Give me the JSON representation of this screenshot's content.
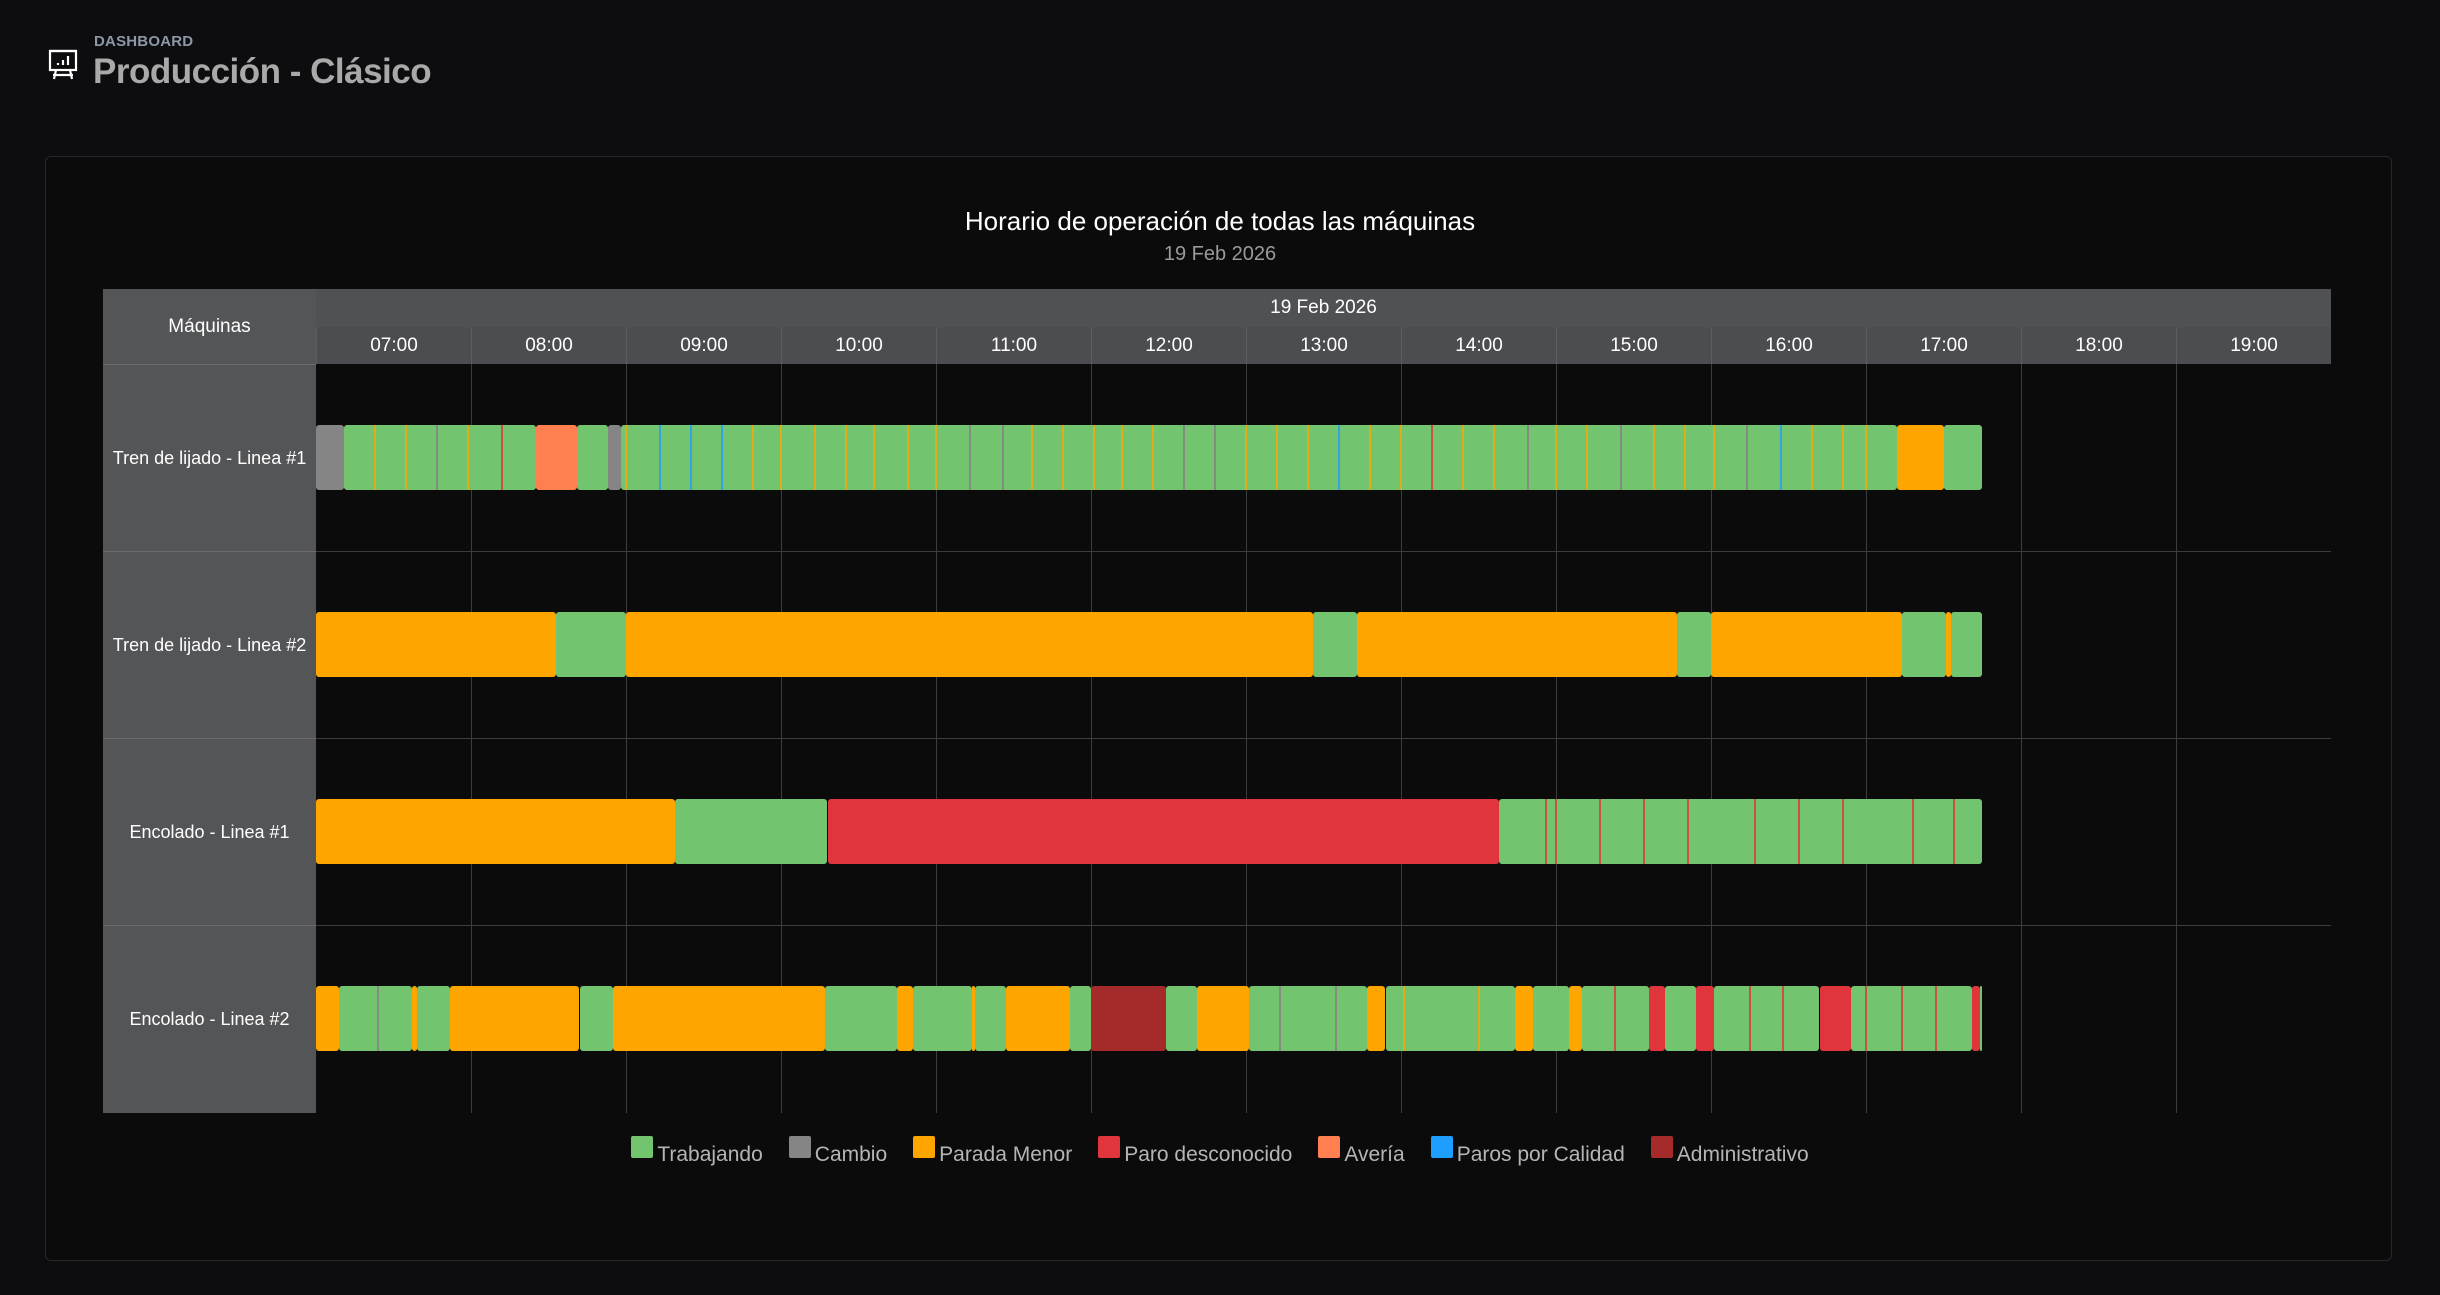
{
  "header": {
    "breadcrumb": "DASHBOARD",
    "title": "Producción - Clásico",
    "icon": "presentation-chart-icon"
  },
  "chart_data": {
    "type": "bar",
    "orientation": "horizontal-timeline",
    "title": "Horario de operación de todas las máquinas",
    "subtitle": "19 Feb 2026",
    "row_header": "Máquinas",
    "date_header": "19 Feb 2026",
    "x_ticks": [
      "07:00",
      "08:00",
      "09:00",
      "10:00",
      "11:00",
      "12:00",
      "13:00",
      "14:00",
      "15:00",
      "16:00",
      "17:00",
      "18:00",
      "19:00"
    ],
    "xlim": [
      "07:00",
      "20:00"
    ],
    "grid": true,
    "legend_position": "bottom",
    "legend": [
      {
        "name": "Trabajando",
        "color": "#73c46e"
      },
      {
        "name": "Cambio",
        "color": "#858585"
      },
      {
        "name": "Parada Menor",
        "color": "#ffa500"
      },
      {
        "name": "Paro desconocido",
        "color": "#e0353c"
      },
      {
        "name": "Avería",
        "color": "#ff7f50"
      },
      {
        "name": "Paros por Calidad",
        "color": "#1e9fff"
      },
      {
        "name": "Administrativo",
        "color": "#a52a2a"
      }
    ],
    "machines": [
      {
        "name": "Tren de lijado - Linea #1",
        "segments": [
          [
            "07:00",
            "07:11",
            "Cambio"
          ],
          [
            "07:11",
            "08:25",
            "Trabajando"
          ],
          [
            "08:25",
            "08:41",
            "Avería"
          ],
          [
            "08:41",
            "08:53",
            "Trabajando"
          ],
          [
            "08:53",
            "08:58",
            "Cambio"
          ],
          [
            "08:58",
            "17:12",
            "Trabajando"
          ],
          [
            "17:12",
            "17:30",
            "Parada Menor"
          ],
          [
            "17:30",
            "17:45",
            "Trabajando"
          ]
        ],
        "markers": [
          [
            "07:23",
            "Parada Menor"
          ],
          [
            "07:35",
            "Parada Menor"
          ],
          [
            "07:47",
            "Cambio"
          ],
          [
            "07:59",
            "Parada Menor"
          ],
          [
            "08:12",
            "Paro desconocido"
          ],
          [
            "09:00",
            "Parada Menor"
          ],
          [
            "09:13",
            "Paros por Calidad"
          ],
          [
            "09:25",
            "Paros por Calidad"
          ],
          [
            "09:37",
            "Paros por Calidad"
          ],
          [
            "09:49",
            "Parada Menor"
          ],
          [
            "10:00",
            "Parada Menor"
          ],
          [
            "10:13",
            "Parada Menor"
          ],
          [
            "10:25",
            "Parada Menor"
          ],
          [
            "10:36",
            "Parada Menor"
          ],
          [
            "10:49",
            "Parada Menor"
          ],
          [
            "11:00",
            "Parada Menor"
          ],
          [
            "11:13",
            "Cambio"
          ],
          [
            "11:26",
            "Cambio"
          ],
          [
            "11:37",
            "Parada Menor"
          ],
          [
            "11:49",
            "Parada Menor"
          ],
          [
            "12:01",
            "Parada Menor"
          ],
          [
            "12:12",
            "Parada Menor"
          ],
          [
            "12:24",
            "Parada Menor"
          ],
          [
            "12:36",
            "Cambio"
          ],
          [
            "12:48",
            "Cambio"
          ],
          [
            "13:00",
            "Parada Menor"
          ],
          [
            "13:12",
            "Parada Menor"
          ],
          [
            "13:24",
            "Parada Menor"
          ],
          [
            "13:36",
            "Paros por Calidad"
          ],
          [
            "13:48",
            "Parada Menor"
          ],
          [
            "14:00",
            "Parada Menor"
          ],
          [
            "14:12",
            "Paro desconocido"
          ],
          [
            "14:24",
            "Parada Menor"
          ],
          [
            "14:36",
            "Parada Menor"
          ],
          [
            "14:49",
            "Cambio"
          ],
          [
            "15:00",
            "Parada Menor"
          ],
          [
            "15:12",
            "Parada Menor"
          ],
          [
            "15:25",
            "Cambio"
          ],
          [
            "15:38",
            "Parada Menor"
          ],
          [
            "15:50",
            "Parada Menor"
          ],
          [
            "16:01",
            "Parada Menor"
          ],
          [
            "16:14",
            "Cambio"
          ],
          [
            "16:27",
            "Paros por Calidad"
          ],
          [
            "16:39",
            "Parada Menor"
          ],
          [
            "16:51",
            "Parada Menor"
          ],
          [
            "17:00",
            "Parada Menor"
          ]
        ]
      },
      {
        "name": "Tren de lijado - Linea #2",
        "segments": [
          [
            "07:00",
            "08:33",
            "Parada Menor"
          ],
          [
            "08:33",
            "09:00",
            "Trabajando"
          ],
          [
            "09:00",
            "13:26",
            "Parada Menor"
          ],
          [
            "13:26",
            "13:43",
            "Trabajando"
          ],
          [
            "13:43",
            "15:47",
            "Parada Menor"
          ],
          [
            "15:47",
            "16:00",
            "Trabajando"
          ],
          [
            "16:00",
            "17:14",
            "Parada Menor"
          ],
          [
            "17:14",
            "17:31",
            "Trabajando"
          ],
          [
            "17:31",
            "17:33",
            "Parada Menor"
          ],
          [
            "17:33",
            "17:45",
            "Trabajando"
          ]
        ],
        "markers": []
      },
      {
        "name": "Encolado - Linea #1",
        "segments": [
          [
            "07:00",
            "09:19",
            "Parada Menor"
          ],
          [
            "09:19",
            "10:18",
            "Trabajando"
          ],
          [
            "10:18",
            "14:38",
            "Paro desconocido"
          ],
          [
            "14:38",
            "17:45",
            "Trabajando"
          ]
        ],
        "markers": [
          [
            "14:56",
            "Paro desconocido"
          ],
          [
            "15:00",
            "Paro desconocido"
          ],
          [
            "15:17",
            "Paro desconocido"
          ],
          [
            "15:34",
            "Paro desconocido"
          ],
          [
            "15:51",
            "Paro desconocido"
          ],
          [
            "16:17",
            "Paro desconocido"
          ],
          [
            "16:34",
            "Paro desconocido"
          ],
          [
            "16:51",
            "Paro desconocido"
          ],
          [
            "17:18",
            "Paro desconocido"
          ],
          [
            "17:34",
            "Paro desconocido"
          ]
        ]
      },
      {
        "name": "Encolado - Linea #2",
        "segments": [
          [
            "07:00",
            "07:09",
            "Parada Menor"
          ],
          [
            "07:09",
            "07:37",
            "Trabajando"
          ],
          [
            "07:37",
            "07:39",
            "Parada Menor"
          ],
          [
            "07:39",
            "07:52",
            "Trabajando"
          ],
          [
            "07:52",
            "08:42",
            "Parada Menor"
          ],
          [
            "08:42",
            "08:55",
            "Trabajando"
          ],
          [
            "08:55",
            "10:17",
            "Parada Menor"
          ],
          [
            "10:17",
            "10:45",
            "Trabajando"
          ],
          [
            "10:45",
            "10:51",
            "Parada Menor"
          ],
          [
            "10:51",
            "11:14",
            "Trabajando"
          ],
          [
            "11:14",
            "11:15",
            "Parada Menor"
          ],
          [
            "11:15",
            "11:27",
            "Trabajando"
          ],
          [
            "11:27",
            "11:52",
            "Parada Menor"
          ],
          [
            "11:52",
            "12:00",
            "Trabajando"
          ],
          [
            "12:00",
            "12:29",
            "Administrativo"
          ],
          [
            "12:29",
            "12:41",
            "Trabajando"
          ],
          [
            "12:41",
            "13:01",
            "Parada Menor"
          ],
          [
            "13:01",
            "13:47",
            "Trabajando"
          ],
          [
            "13:47",
            "13:54",
            "Parada Menor"
          ],
          [
            "13:54",
            "14:44",
            "Trabajando"
          ],
          [
            "14:44",
            "14:51",
            "Parada Menor"
          ],
          [
            "14:51",
            "15:05",
            "Trabajando"
          ],
          [
            "15:05",
            "15:10",
            "Parada Menor"
          ],
          [
            "15:10",
            "15:36",
            "Trabajando"
          ],
          [
            "15:36",
            "15:42",
            "Paro desconocido"
          ],
          [
            "15:42",
            "15:54",
            "Trabajando"
          ],
          [
            "15:54",
            "16:01",
            "Paro desconocido"
          ],
          [
            "16:01",
            "16:42",
            "Trabajando"
          ],
          [
            "16:42",
            "16:54",
            "Paro desconocido"
          ],
          [
            "16:54",
            "17:41",
            "Trabajando"
          ],
          [
            "17:41",
            "17:44",
            "Paro desconocido"
          ],
          [
            "17:44",
            "17:45",
            "Trabajando"
          ]
        ],
        "markers": [
          [
            "07:24",
            "Cambio"
          ],
          [
            "13:13",
            "Cambio"
          ],
          [
            "13:35",
            "Cambio"
          ],
          [
            "14:01",
            "Parada Menor"
          ],
          [
            "14:30",
            "Parada Menor"
          ],
          [
            "15:23",
            "Paro desconocido"
          ],
          [
            "16:15",
            "Paro desconocido"
          ],
          [
            "16:28",
            "Paro desconocido"
          ],
          [
            "17:00",
            "Paro desconocido"
          ],
          [
            "17:14",
            "Paro desconocido"
          ],
          [
            "17:27",
            "Paro desconocido"
          ]
        ]
      }
    ]
  }
}
